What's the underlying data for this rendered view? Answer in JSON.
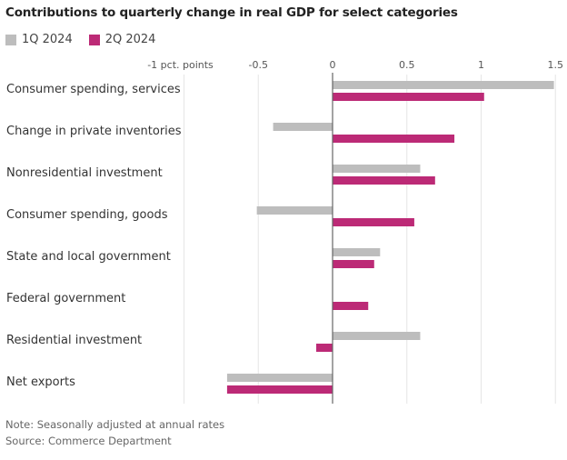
{
  "chart_data": {
    "type": "bar",
    "orientation": "horizontal",
    "title": "Contributions to quarterly change in real GDP for select categories",
    "xlabel": "",
    "ylabel": "",
    "xlim": [
      -1,
      1.5
    ],
    "ticks": [
      {
        "value": -1,
        "label": "-1 pct. points"
      },
      {
        "value": -0.5,
        "label": "-0.5"
      },
      {
        "value": 0,
        "label": "0"
      },
      {
        "value": 0.5,
        "label": "0.5"
      },
      {
        "value": 1,
        "label": "1"
      },
      {
        "value": 1.5,
        "label": "1.5"
      }
    ],
    "grid": true,
    "legend_position": "top-left",
    "categories": [
      "Consumer spending, services",
      "Change in private inventories",
      "Nonresidential investment",
      "Consumer spending, goods",
      "State and local government",
      "Federal government",
      "Residential investment",
      "Net exports"
    ],
    "series": [
      {
        "name": "1Q 2024",
        "color": "#bdbdbd",
        "values": [
          1.49,
          -0.4,
          0.59,
          -0.51,
          0.32,
          0.0,
          0.59,
          -0.71
        ]
      },
      {
        "name": "2Q 2024",
        "color": "#bc2a76",
        "values": [
          1.02,
          0.82,
          0.69,
          0.55,
          0.28,
          0.24,
          -0.11,
          -0.71
        ]
      }
    ]
  },
  "footer": {
    "note": "Note: Seasonally adjusted at annual rates",
    "source": "Source: Commerce Department"
  }
}
